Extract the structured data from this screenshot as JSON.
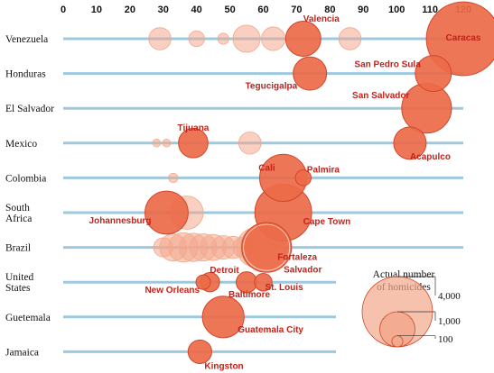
{
  "chart_data": {
    "type": "bubble",
    "x_ticks": [
      0,
      10,
      20,
      30,
      40,
      50,
      60,
      70,
      80,
      90,
      100,
      110,
      120
    ],
    "xlim": [
      0,
      120
    ],
    "categories": [
      [
        "Venezuela"
      ],
      [
        "Honduras"
      ],
      [
        "El Salvador"
      ],
      [
        "Mexico"
      ],
      [
        "Colombia"
      ],
      [
        "South",
        "Africa"
      ],
      [
        "Brazil"
      ],
      [
        "United",
        "States"
      ],
      [
        "Guetemala"
      ],
      [
        "Jamaica"
      ]
    ],
    "colors": {
      "grid": "#9dc8de",
      "bubble": "#ec6a48",
      "bubble_stroke": "#d2462a",
      "faint": "#f2a88c",
      "label": "#c0231a"
    },
    "points": [
      {
        "row": 0,
        "x": 120,
        "n": 4400,
        "label": "Caracas",
        "hl": true
      },
      {
        "row": 0,
        "x": 72,
        "n": 1000,
        "label": "Valencia",
        "hl": true
      },
      {
        "row": 0,
        "x": 29,
        "n": 400
      },
      {
        "row": 0,
        "x": 40,
        "n": 200
      },
      {
        "row": 0,
        "x": 48,
        "n": 100
      },
      {
        "row": 0,
        "x": 55,
        "n": 600
      },
      {
        "row": 0,
        "x": 63,
        "n": 450
      },
      {
        "row": 0,
        "x": 86,
        "n": 400
      },
      {
        "row": 1,
        "x": 111,
        "n": 1050,
        "label": "San Pedro Sula",
        "hl": true
      },
      {
        "row": 1,
        "x": 74,
        "n": 900,
        "label": "Tegucigalpa",
        "hl": true
      },
      {
        "row": 2,
        "x": 109,
        "n": 2000,
        "label": "San Salvador",
        "hl": true
      },
      {
        "row": 3,
        "x": 104,
        "n": 850,
        "label": "Acapulco",
        "hl": true
      },
      {
        "row": 3,
        "x": 39,
        "n": 700,
        "label": "Tijuana",
        "hl": true
      },
      {
        "row": 3,
        "x": 28,
        "n": 50
      },
      {
        "row": 3,
        "x": 31,
        "n": 50
      },
      {
        "row": 3,
        "x": 56,
        "n": 400
      },
      {
        "row": 4,
        "x": 66,
        "n": 1800,
        "label": "Cali",
        "hl": true
      },
      {
        "row": 4,
        "x": 72,
        "n": 200,
        "label": "Palmira",
        "hl": true
      },
      {
        "row": 4,
        "x": 33,
        "n": 70
      },
      {
        "row": 5,
        "x": 66,
        "n": 2600,
        "label": "Cape Town",
        "hl": true
      },
      {
        "row": 5,
        "x": 31,
        "n": 1500,
        "label": "Johannesburg",
        "hl": true
      },
      {
        "row": 5,
        "x": 37,
        "n": 900
      },
      {
        "row": 6,
        "x": 61,
        "n": 2000,
        "label": "Fortaleza",
        "hl": true
      },
      {
        "row": 6,
        "x": 60,
        "n": 1700
      },
      {
        "row": 6,
        "x": 58,
        "n": 1300,
        "label": "Salvador"
      },
      {
        "row": 6,
        "x": 30,
        "n": 300
      },
      {
        "row": 6,
        "x": 33,
        "n": 600
      },
      {
        "row": 6,
        "x": 36,
        "n": 700
      },
      {
        "row": 6,
        "x": 39,
        "n": 650
      },
      {
        "row": 6,
        "x": 42,
        "n": 600
      },
      {
        "row": 6,
        "x": 45,
        "n": 550
      },
      {
        "row": 6,
        "x": 48,
        "n": 450
      },
      {
        "row": 6,
        "x": 51,
        "n": 400
      },
      {
        "row": 6,
        "x": 54,
        "n": 350
      },
      {
        "row": 7,
        "x": 44,
        "n": 300,
        "label": "Detroit",
        "hl": true
      },
      {
        "row": 7,
        "x": 42,
        "n": 170,
        "label": "New Orleans",
        "hl": true
      },
      {
        "row": 7,
        "x": 55,
        "n": 350,
        "label": "Baltimore",
        "hl": true
      },
      {
        "row": 7,
        "x": 60,
        "n": 250,
        "label": "St. Louis",
        "hl": true
      },
      {
        "row": 8,
        "x": 48,
        "n": 1400,
        "label": "Guatemala City",
        "hl": true
      },
      {
        "row": 9,
        "x": 41,
        "n": 450,
        "label": "Kingston",
        "hl": true
      }
    ],
    "size_legend": {
      "title": [
        "Actual number",
        "of homicides"
      ],
      "entries": [
        {
          "value": 4000,
          "label": "4,000"
        },
        {
          "value": 1000,
          "label": "1,000"
        },
        {
          "value": 100,
          "label": "100"
        }
      ]
    }
  }
}
